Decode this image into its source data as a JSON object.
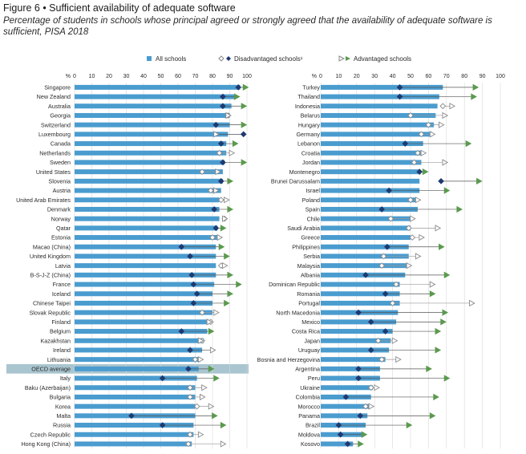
{
  "title": "Figure 6 • Sufficient availability of adequate software",
  "subtitle": "Percentage of students in schools whose principal agreed or strongly agreed that the availability of adequate software is sufficient, PISA 2018",
  "legend": {
    "all": "All schools",
    "disadvantaged": "Disadvantaged schools¹",
    "advantaged": "Advantaged schools"
  },
  "colors": {
    "all": "#4a9ccf",
    "disadvantaged": "#1f3a70",
    "advantaged": "#5b9a4e",
    "hollow": "#8a8a8a",
    "highlight": "#a9c5cf",
    "grid": "#d9d9d9",
    "text": "#2a2a2a"
  },
  "chart_data": [
    {
      "type": "bar",
      "panel": "left",
      "xlabel": "%",
      "xlim": [
        0,
        100
      ],
      "ticks": [
        0,
        10,
        20,
        30,
        40,
        50,
        60,
        70,
        80,
        90,
        100
      ],
      "highlight": "OECD average",
      "categories": [
        "Singapore",
        "New Zealand",
        "Australia",
        "Georgia",
        "Switzerland",
        "Luxembourg",
        "Canada",
        "Netherlands",
        "Sweden",
        "United States",
        "Slovenia",
        "Austria",
        "United Arab Emirates",
        "Denmark",
        "Norway",
        "Qatar",
        "Estonia",
        "Macao (China)",
        "United Kingdom",
        "Latvia",
        "B-S-J-Z (China)",
        "France",
        "Iceland",
        "Chinese Taipei",
        "Slovak Republic",
        "Finland",
        "Belgium",
        "Kazakhstan",
        "Ireland",
        "Lithuania",
        "OECD average",
        "Italy",
        "Baku (Azerbaijan)",
        "Bulgaria",
        "Korea",
        "Malta",
        "Russia",
        "Czech Republic",
        "Hong Kong (China)"
      ],
      "series": [
        {
          "name": "All schools",
          "values": [
            96,
            93,
            91,
            90,
            90,
            89,
            88,
            88,
            87,
            86,
            86,
            85,
            84,
            84,
            84,
            83,
            83,
            82,
            82,
            82,
            82,
            81,
            80,
            80,
            80,
            78,
            77,
            75,
            74,
            73,
            72,
            71,
            70,
            70,
            70,
            70,
            69,
            69,
            68
          ]
        },
        {
          "name": "Disadvantaged schools¹",
          "values": [
            95,
            86,
            86,
            89,
            82,
            98,
            85,
            84,
            86,
            74,
            85,
            79,
            85,
            81,
            87,
            82,
            80,
            62,
            67,
            85,
            68,
            69,
            71,
            69,
            74,
            79,
            62,
            74,
            67,
            70,
            66,
            51,
            67,
            67,
            71,
            33,
            51,
            67,
            66
          ],
          "significant": [
            true,
            true,
            true,
            false,
            true,
            true,
            true,
            false,
            true,
            false,
            true,
            false,
            false,
            true,
            false,
            true,
            false,
            true,
            true,
            false,
            true,
            true,
            true,
            true,
            false,
            false,
            true,
            false,
            true,
            false,
            true,
            true,
            false,
            false,
            false,
            true,
            true,
            false,
            false
          ]
        },
        {
          "name": "Advantaged schools",
          "values": [
            99,
            94,
            98,
            89,
            98,
            82,
            93,
            91,
            98,
            83,
            90,
            82,
            88,
            90,
            87,
            86,
            84,
            85,
            88,
            87,
            90,
            95,
            90,
            88,
            82,
            78,
            79,
            73,
            80,
            73,
            79,
            82,
            75,
            74,
            79,
            81,
            86,
            73,
            86
          ],
          "significant": [
            true,
            true,
            true,
            false,
            true,
            false,
            true,
            false,
            true,
            false,
            true,
            false,
            false,
            true,
            false,
            true,
            false,
            true,
            true,
            false,
            true,
            true,
            true,
            true,
            false,
            false,
            true,
            false,
            false,
            false,
            true,
            true,
            false,
            false,
            false,
            true,
            true,
            false,
            false
          ]
        }
      ]
    },
    {
      "type": "bar",
      "panel": "right",
      "xlabel": "%",
      "xlim": [
        0,
        100
      ],
      "ticks": [
        0,
        10,
        20,
        30,
        40,
        50,
        60,
        70,
        80,
        90,
        100
      ],
      "categories": [
        "Turkey",
        "Thailand",
        "Indonesia",
        "Belarus",
        "Hungary",
        "Germany",
        "Lebanon",
        "Croatia",
        "Jordan",
        "Montenegro",
        "Brunei Darussalam",
        "Israel",
        "Poland",
        "Spain",
        "Chile",
        "Saudi Arabia",
        "Greece",
        "Philippines",
        "Serbia",
        "Malaysia",
        "Albania",
        "Dominican Republic",
        "Romania",
        "Portugal",
        "North Macedonia",
        "Mexico",
        "Costa Rica",
        "Japan",
        "Uruguay",
        "Bosnia and Herzegovina",
        "Argentina",
        "Peru",
        "Ukraine",
        "Colombia",
        "Morocco",
        "Panama",
        "Brazil",
        "Moldova",
        "Kosovo"
      ],
      "series": [
        {
          "name": "All schools",
          "values": [
            68,
            66,
            65,
            64,
            63,
            62,
            57,
            56,
            56,
            55,
            55,
            55,
            53,
            54,
            50,
            50,
            50,
            49,
            49,
            48,
            47,
            44,
            44,
            44,
            43,
            42,
            40,
            39,
            38,
            36,
            33,
            33,
            29,
            28,
            27,
            26,
            25,
            24,
            18
          ]
        },
        {
          "name": "Disadvantaged schools¹",
          "values": [
            44,
            44,
            68,
            50,
            60,
            56,
            47,
            54,
            52,
            55,
            67,
            38,
            50,
            34,
            39,
            49,
            51,
            37,
            35,
            34,
            25,
            42,
            36,
            40,
            21,
            28,
            36,
            32,
            28,
            34,
            21,
            21,
            28,
            14,
            25,
            22,
            10,
            11,
            15
          ],
          "significant": [
            true,
            true,
            false,
            false,
            false,
            false,
            true,
            false,
            false,
            true,
            true,
            true,
            false,
            true,
            false,
            false,
            false,
            true,
            false,
            false,
            true,
            false,
            true,
            false,
            true,
            true,
            true,
            false,
            true,
            false,
            true,
            true,
            false,
            true,
            false,
            true,
            true,
            true,
            true
          ]
        },
        {
          "name": "Advantaged schools",
          "values": [
            86,
            85,
            73,
            69,
            67,
            62,
            82,
            57,
            69,
            58,
            88,
            70,
            54,
            77,
            51,
            65,
            56,
            67,
            54,
            49,
            70,
            62,
            62,
            84,
            69,
            68,
            65,
            41,
            65,
            43,
            60,
            70,
            31,
            64,
            28,
            62,
            49,
            24,
            22
          ],
          "significant": [
            true,
            true,
            false,
            false,
            false,
            false,
            true,
            false,
            false,
            true,
            true,
            true,
            false,
            true,
            false,
            false,
            false,
            true,
            false,
            false,
            true,
            false,
            true,
            false,
            true,
            true,
            true,
            false,
            true,
            false,
            true,
            true,
            false,
            true,
            false,
            true,
            true,
            true,
            true
          ]
        }
      ]
    }
  ]
}
